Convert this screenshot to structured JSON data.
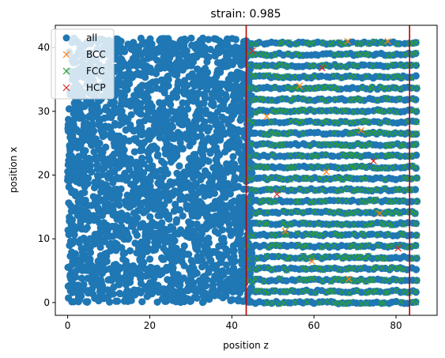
{
  "chart_data": {
    "type": "scatter",
    "title": "strain: 0.985",
    "xlabel": "position z",
    "ylabel": "position x",
    "xlim": [
      -3,
      90
    ],
    "ylim": [
      -2,
      43.5
    ],
    "xticks": [
      0,
      20,
      40,
      60,
      80
    ],
    "yticks": [
      0,
      10,
      20,
      30,
      40
    ],
    "grid": false,
    "legend_position": "top-left",
    "vertical_lines": [
      43.5,
      83.3
    ],
    "vertical_line_color": "#c00000",
    "dense_region": {
      "x": [
        0,
        86
      ],
      "y": [
        0,
        41.5
      ]
    },
    "layered_region": {
      "x": [
        44,
        85
      ],
      "y": [
        0,
        41.5
      ],
      "layer_spacing": 1.77
    },
    "series": [
      {
        "name": "all",
        "marker": "circle",
        "color": "#1f77b4"
      },
      {
        "name": "BCC",
        "marker": "x",
        "color": "#ff7f0e",
        "points": [
          [
            48.5,
            29.2
          ],
          [
            56.5,
            34.0
          ],
          [
            68.2,
            41.0
          ],
          [
            78.0,
            41.0
          ],
          [
            68.5,
            3.7
          ],
          [
            63.0,
            20.5
          ],
          [
            53.0,
            11.2
          ],
          [
            71.5,
            27.0
          ],
          [
            76.0,
            14.0
          ],
          [
            59.5,
            6.5
          ]
        ]
      },
      {
        "name": "FCC",
        "marker": "x",
        "color": "#2ca02c"
      },
      {
        "name": "HCP",
        "marker": "x",
        "color": "#d62728",
        "points": [
          [
            45.0,
            39.5
          ],
          [
            62.0,
            36.8
          ],
          [
            74.5,
            22.2
          ],
          [
            51.0,
            17.0
          ],
          [
            80.5,
            8.5
          ]
        ]
      }
    ]
  }
}
